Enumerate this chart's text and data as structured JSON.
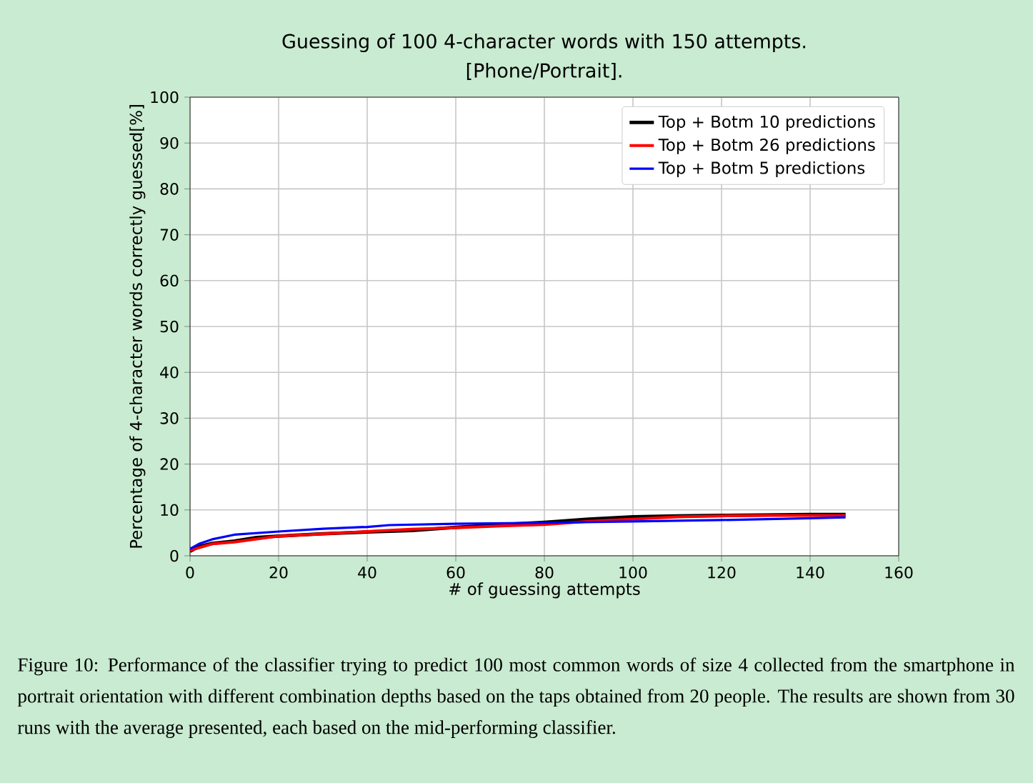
{
  "chart_data": {
    "type": "line",
    "title": "Guessing of 100 4-character words with 150 attempts.",
    "subtitle": "[Phone/Portrait].",
    "xlabel": "# of guessing attempts",
    "ylabel": "Percentage of 4-character words correctly guessed[%]",
    "xlim": [
      0,
      160
    ],
    "ylim": [
      0,
      100
    ],
    "xticks": [
      0,
      20,
      40,
      60,
      80,
      100,
      120,
      140,
      160
    ],
    "yticks": [
      0,
      10,
      20,
      30,
      40,
      50,
      60,
      70,
      80,
      90,
      100
    ],
    "grid": true,
    "legend": "top right",
    "series": [
      {
        "name": "Top + Botm 10 predictions",
        "color": "#000000",
        "x": [
          0,
          2,
          5,
          10,
          15,
          20,
          30,
          40,
          50,
          60,
          70,
          80,
          90,
          100,
          110,
          120,
          130,
          140,
          148
        ],
        "values": [
          1,
          2,
          2.7,
          3.2,
          4,
          4.3,
          4.8,
          5.2,
          5.5,
          6.2,
          6.8,
          7.3,
          8,
          8.5,
          8.7,
          8.8,
          8.9,
          9,
          9
        ]
      },
      {
        "name": "Top + Botm 26 predictions",
        "color": "#ff0000",
        "x": [
          0,
          5,
          10,
          20,
          30,
          40,
          50,
          60,
          70,
          80,
          90,
          100,
          110,
          120,
          130,
          140,
          148
        ],
        "values": [
          1.2,
          2.6,
          3,
          4.3,
          4.8,
          5.3,
          5.8,
          6.1,
          6.5,
          6.8,
          7.5,
          8,
          8.5,
          8.7,
          8.8,
          8.8,
          8.8
        ]
      },
      {
        "name": "Top + Botm 5 predictions",
        "color": "#0000ff",
        "x": [
          0,
          2,
          5,
          10,
          20,
          30,
          40,
          45,
          60,
          70,
          80,
          100,
          120,
          140,
          148
        ],
        "values": [
          1.5,
          2.6,
          3.6,
          4.6,
          5.3,
          5.9,
          6.3,
          6.7,
          7,
          7.1,
          7.2,
          7.5,
          7.8,
          8.2,
          8.4
        ]
      }
    ],
    "annotations": [
      "Figure 10: Performance of the classifier trying to predict 100 most common words of size 4 collected from the smartphone in portrait orientation with different combination depths based on the taps obtained from 20 people. The results are shown from 30 runs with the average presented, each based on the mid-performing classifier."
    ]
  }
}
